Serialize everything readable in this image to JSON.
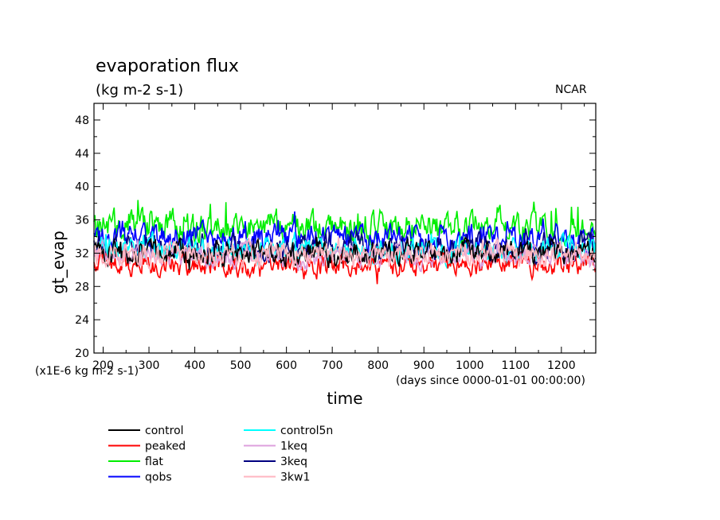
{
  "chart_data": {
    "type": "line",
    "title": "evaporation flux",
    "subtitle": "(kg m-2 s-1)",
    "corner_label": "NCAR",
    "ylabel": "gt_evap",
    "xlabel": "time",
    "y_scale_note": "(x1E-6 kg m-2 s-1)",
    "x_unit_note": "(days since 0000-01-01 00:00:00)",
    "xlim": [
      180,
      1275
    ],
    "ylim": [
      20,
      50
    ],
    "x_ticks": [
      200,
      300,
      400,
      500,
      600,
      700,
      800,
      900,
      1000,
      1100,
      1200
    ],
    "y_ticks": [
      20,
      24,
      28,
      32,
      36,
      40,
      44,
      48
    ],
    "grid": false,
    "legend_position": "bottom-left, two columns",
    "series": [
      {
        "name": "control",
        "color": "#000000",
        "mean": 32.0,
        "amp": 1.6
      },
      {
        "name": "peaked",
        "color": "#ff0000",
        "mean": 30.6,
        "amp": 1.4
      },
      {
        "name": "flat",
        "color": "#00ee00",
        "mean": 35.2,
        "amp": 2.0
      },
      {
        "name": "qobs",
        "color": "#0000ff",
        "mean": 33.8,
        "amp": 1.8
      },
      {
        "name": "control5n",
        "color": "#00ffff",
        "mean": 32.4,
        "amp": 1.6
      },
      {
        "name": "1keq",
        "color": "#dda0dd",
        "mean": 31.6,
        "amp": 1.4
      },
      {
        "name": "3keq",
        "color": "#000080",
        "mean": 32.6,
        "amp": 1.8
      },
      {
        "name": "3kw1",
        "color": "#ffb6c1",
        "mean": 31.8,
        "amp": 1.5
      }
    ]
  }
}
